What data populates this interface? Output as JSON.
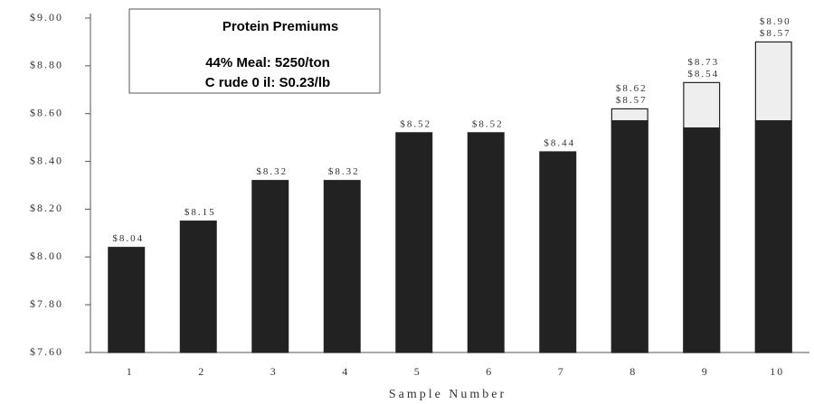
{
  "chart_data": {
    "type": "bar",
    "x_label": "Sample Number",
    "annotation": {
      "title": "Protein Premiums",
      "lines": [
        "44% Meal: 5250/ton",
        "C rude 0 il: S0.23/lb"
      ]
    },
    "categories": [
      "1",
      "2",
      "3",
      "4",
      "5",
      "6",
      "7",
      "8",
      "9",
      "10"
    ],
    "series": [
      {
        "color": "#eeeeee",
        "values": [
          null,
          null,
          null,
          null,
          null,
          null,
          null,
          8.62,
          8.73,
          8.9
        ],
        "value_labels": [
          null,
          null,
          null,
          null,
          null,
          null,
          null,
          "$8.62",
          "$8.73",
          "$8.90"
        ]
      },
      {
        "color": "#222222",
        "values": [
          8.04,
          8.15,
          8.32,
          8.32,
          8.52,
          8.52,
          8.44,
          8.57,
          8.54,
          8.57
        ],
        "value_labels": [
          "$8.04",
          "$8.15",
          "$8.32",
          "$8.32",
          "$8.52",
          "$8.52",
          "$8.44",
          "$8.57",
          "$8.54",
          "$8.57"
        ]
      }
    ],
    "ylim": [
      7.6,
      9.0
    ],
    "yticks": [
      {
        "value": 7.6,
        "label": "$7.60"
      },
      {
        "value": 7.8,
        "label": "$7.80"
      },
      {
        "value": 8.0,
        "label": "$8.00"
      },
      {
        "value": 8.2,
        "label": "$8.20"
      },
      {
        "value": 8.4,
        "label": "$8.40"
      },
      {
        "value": 8.6,
        "label": "$8.60"
      },
      {
        "value": 8.8,
        "label": "$8.80"
      },
      {
        "value": 9.0,
        "label": "$9.00"
      }
    ]
  }
}
